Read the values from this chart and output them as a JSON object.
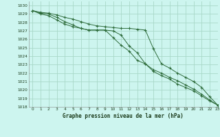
{
  "title": "Graphe pression niveau de la mer (hPa)",
  "bg_color": "#cdf5ef",
  "grid_color": "#a8d8c8",
  "line_color": "#2d6b3a",
  "xlim": [
    -0.5,
    23
  ],
  "ylim": [
    1018,
    1030.5
  ],
  "xticks": [
    0,
    1,
    2,
    3,
    4,
    5,
    6,
    7,
    8,
    9,
    10,
    11,
    12,
    13,
    14,
    15,
    16,
    17,
    18,
    19,
    20,
    21,
    22,
    23
  ],
  "yticks": [
    1018,
    1019,
    1020,
    1021,
    1022,
    1023,
    1024,
    1025,
    1026,
    1027,
    1028,
    1029,
    1030
  ],
  "series": [
    [
      1029.4,
      1029.1,
      1029.0,
      1028.6,
      1028.1,
      1027.7,
      1027.3,
      1027.1,
      1027.1,
      1027.1,
      1027.0,
      1026.5,
      1025.2,
      1024.4,
      1023.1,
      1022.4,
      1022.0,
      1021.5,
      1021.1,
      1020.6,
      1020.1,
      1019.5,
      1018.8,
      1018.2
    ],
    [
      1029.4,
      1029.0,
      1028.8,
      1028.3,
      1027.8,
      1027.5,
      1027.3,
      1027.1,
      1027.1,
      1027.1,
      1026.2,
      1025.3,
      1024.6,
      1023.5,
      1023.1,
      1022.2,
      1021.7,
      1021.3,
      1020.7,
      1020.3,
      1019.9,
      1019.3,
      1018.7,
      1018.2
    ],
    [
      1029.4,
      1029.2,
      1029.1,
      1028.9,
      1028.6,
      1028.4,
      1028.1,
      1027.8,
      1027.6,
      1027.5,
      1027.4,
      1027.3,
      1027.3,
      1027.2,
      1027.1,
      1024.9,
      1023.1,
      1022.6,
      1022.0,
      1021.5,
      1021.0,
      1020.3,
      1019.2,
      1018.2
    ]
  ]
}
